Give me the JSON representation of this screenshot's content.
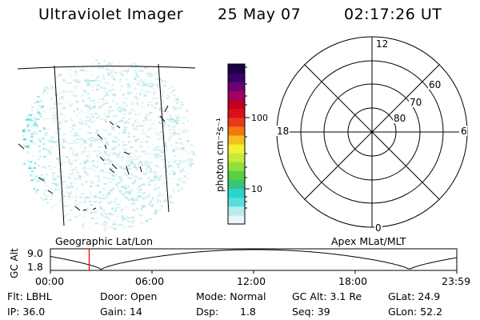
{
  "header": {
    "instrument": "Ultraviolet Imager",
    "date": "25 May 07",
    "time": "02:17:26 UT"
  },
  "colorbar": {
    "unit_label": "photon cm⁻²s⁻¹",
    "ticks": [
      "100",
      "10"
    ],
    "scale": "log",
    "colors": [
      "#e8f6f6",
      "#b6ecec",
      "#55e0dc",
      "#26d4d0",
      "#3ac37a",
      "#58d040",
      "#8fe03a",
      "#c8ec3a",
      "#f2f230",
      "#f4c020",
      "#f07a10",
      "#e83820",
      "#d81018",
      "#c00020",
      "#a00060",
      "#6a0070",
      "#3a0068",
      "#1a0048"
    ]
  },
  "polar_plot": {
    "mlt_labels": [
      "12",
      "18",
      "6",
      "0"
    ],
    "lat_labels": [
      "60",
      "70",
      "80"
    ],
    "title": "Apex MLat/MLT"
  },
  "image_panel": {
    "title": "Geographic Lat/Lon"
  },
  "timeline": {
    "y_axis_label": "GC Alt",
    "y_ticks": [
      "9.0",
      "1.8"
    ],
    "x_ticks": [
      "00:00",
      "06:00",
      "12:00",
      "18:00",
      "23:59"
    ],
    "current_time_marker_hours": 2.29,
    "marker_color": "#ff0000"
  },
  "status": {
    "filter": "Flt: LBHL",
    "door": "Door: Open",
    "mode": "Mode: Normal",
    "gc_alt": "GC Alt: 3.1 Re",
    "glat": "GLat:  24.9",
    "ip": "IP: 36.0",
    "gain": "Gain: 14",
    "dsp_label": "Dsp:",
    "dsp_value": "1.8",
    "seq": "Seq: 39",
    "glon": "GLon:  52.2"
  }
}
